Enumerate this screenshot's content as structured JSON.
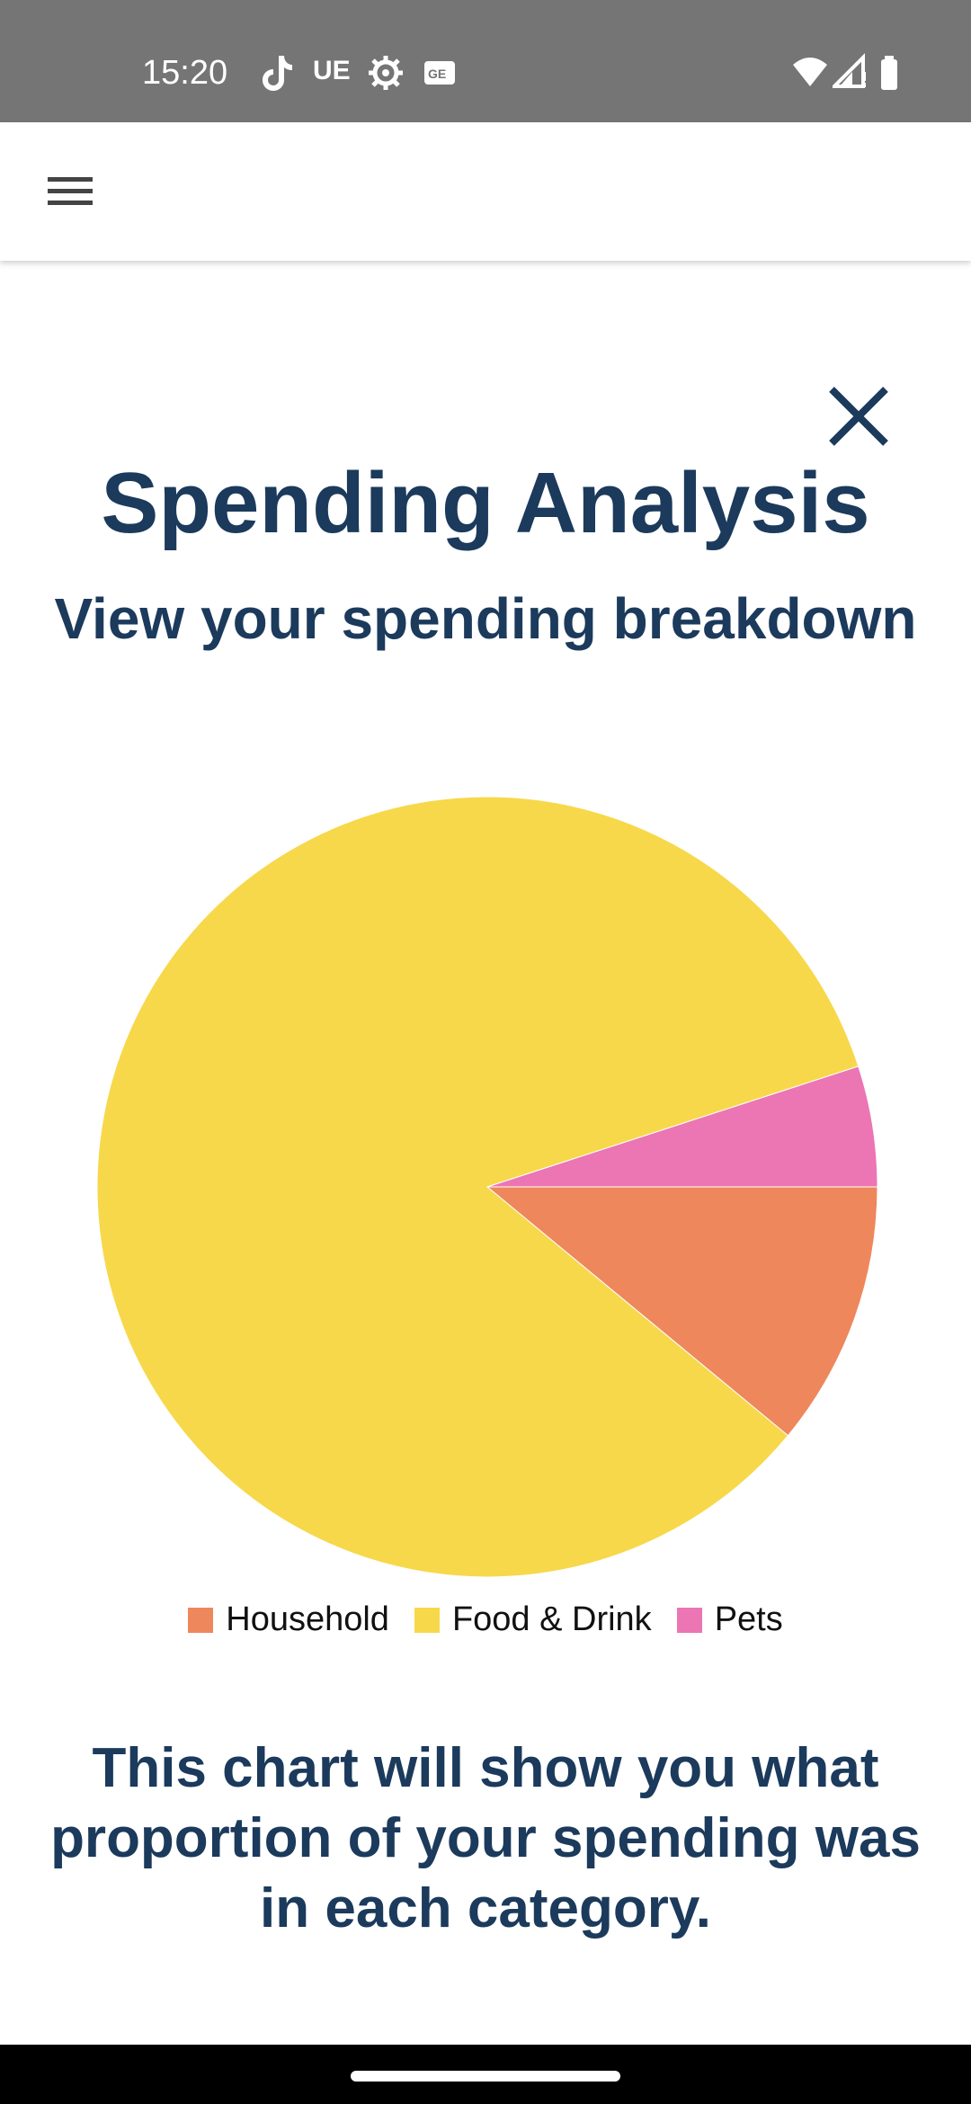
{
  "status_bar": {
    "time": "15:20",
    "icons": [
      "tiktok-icon",
      "ue-icon",
      "gear-icon",
      "ge-icon",
      "wifi-icon",
      "signal-icon",
      "battery-icon"
    ],
    "ue_label": "UE"
  },
  "app_bar": {
    "menu_icon": "hamburger-menu-icon"
  },
  "header": {
    "title": "Spending Analysis",
    "subtitle": "View your spending breakdown",
    "close_icon": "close-icon"
  },
  "chart_data": {
    "type": "pie",
    "title": "",
    "slices": [
      {
        "label": "Household",
        "value": 11,
        "color": "#ef875c"
      },
      {
        "label": "Food & Drink",
        "value": 84,
        "color": "#f7d84b"
      },
      {
        "label": "Pets",
        "value": 5,
        "color": "#ec75b3"
      }
    ],
    "legend_position": "bottom"
  },
  "description": "This chart will show you what proportion of your spending was in each category.",
  "colors": {
    "text_primary": "#1b3a5c",
    "status_bar": "#757575"
  }
}
